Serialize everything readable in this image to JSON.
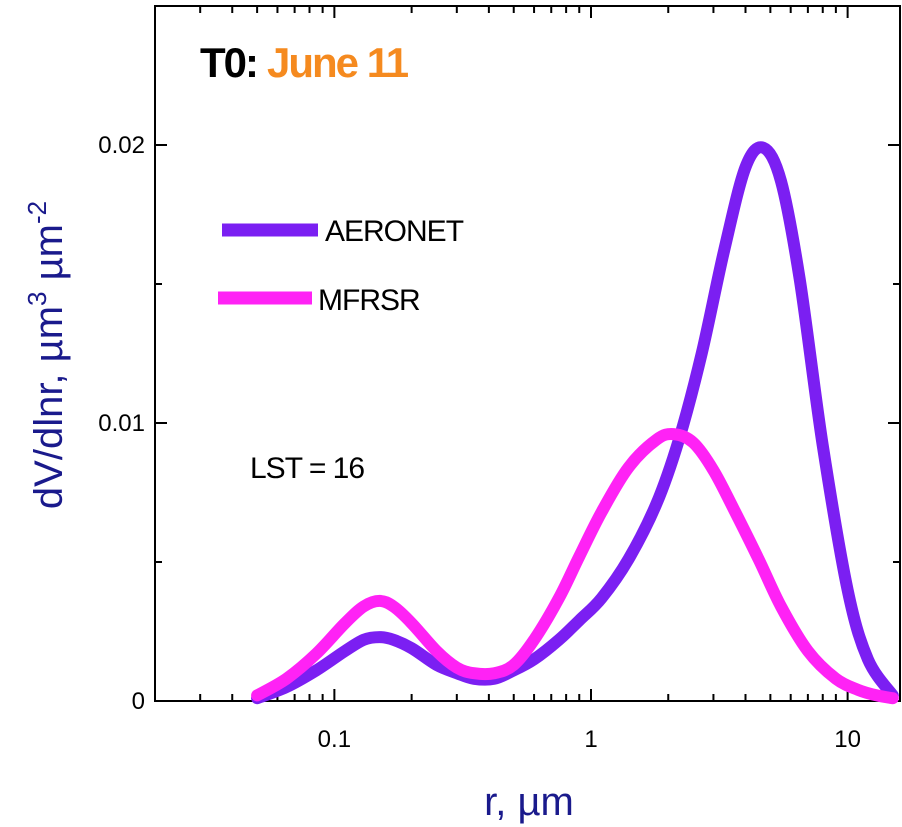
{
  "chart_data": {
    "type": "line",
    "title": {
      "prefix": "T0:",
      "date": "June 11",
      "prefix_color": "#000000",
      "date_color": "#F58A1F"
    },
    "xlabel": "r, µm",
    "ylabel": {
      "text": "dV/dlnr, µm",
      "sup1": "3",
      "mid": " µm",
      "sup2": "-2",
      "color": "#1A1A8C"
    },
    "xscale": "log",
    "xlim": [
      0.02,
      16
    ],
    "ylim": [
      0,
      0.025
    ],
    "x_ticks": [
      {
        "value": 0.1,
        "label": "0.1"
      },
      {
        "value": 1,
        "label": "1"
      },
      {
        "value": 10,
        "label": "10"
      }
    ],
    "y_ticks": [
      {
        "value": 0,
        "label": "0"
      },
      {
        "value": 0.01,
        "label": "0.01"
      },
      {
        "value": 0.02,
        "label": "0.02"
      }
    ],
    "annotation": "LST = 16",
    "legend_position": "top-left",
    "grid": false,
    "series": [
      {
        "name": "AERONET",
        "color": "#7B1FF2",
        "x": [
          0.05,
          0.065,
          0.085,
          0.11,
          0.13,
          0.15,
          0.17,
          0.2,
          0.25,
          0.3,
          0.35,
          0.42,
          0.5,
          0.6,
          0.75,
          0.9,
          1.1,
          1.4,
          1.8,
          2.2,
          2.7,
          3.3,
          4.0,
          4.7,
          5.5,
          6.5,
          8.0,
          10.0,
          12.0,
          15.0
        ],
        "y": [
          0.0001,
          0.0005,
          0.0011,
          0.0018,
          0.0022,
          0.0023,
          0.0022,
          0.0019,
          0.0013,
          0.001,
          0.0008,
          0.0008,
          0.0011,
          0.0015,
          0.0022,
          0.0029,
          0.0037,
          0.0051,
          0.0071,
          0.0094,
          0.0125,
          0.0162,
          0.0192,
          0.0199,
          0.0187,
          0.0152,
          0.0092,
          0.004,
          0.0015,
          0.0002
        ]
      },
      {
        "name": "MFRSR",
        "color": "#FF22F5",
        "x": [
          0.05,
          0.065,
          0.085,
          0.11,
          0.13,
          0.15,
          0.17,
          0.2,
          0.25,
          0.3,
          0.35,
          0.42,
          0.5,
          0.6,
          0.75,
          0.9,
          1.1,
          1.4,
          1.8,
          2.1,
          2.5,
          3.0,
          3.6,
          4.5,
          5.5,
          7.0,
          9.0,
          11.0,
          13.0,
          15.0
        ],
        "y": [
          0.0002,
          0.0008,
          0.0017,
          0.0028,
          0.0034,
          0.0036,
          0.0034,
          0.0028,
          0.0018,
          0.0012,
          0.001,
          0.001,
          0.0013,
          0.0022,
          0.0037,
          0.0052,
          0.0068,
          0.0084,
          0.0094,
          0.0096,
          0.0093,
          0.0083,
          0.0069,
          0.0051,
          0.0034,
          0.0018,
          0.0008,
          0.0004,
          0.0002,
          0.0001
        ]
      }
    ]
  }
}
